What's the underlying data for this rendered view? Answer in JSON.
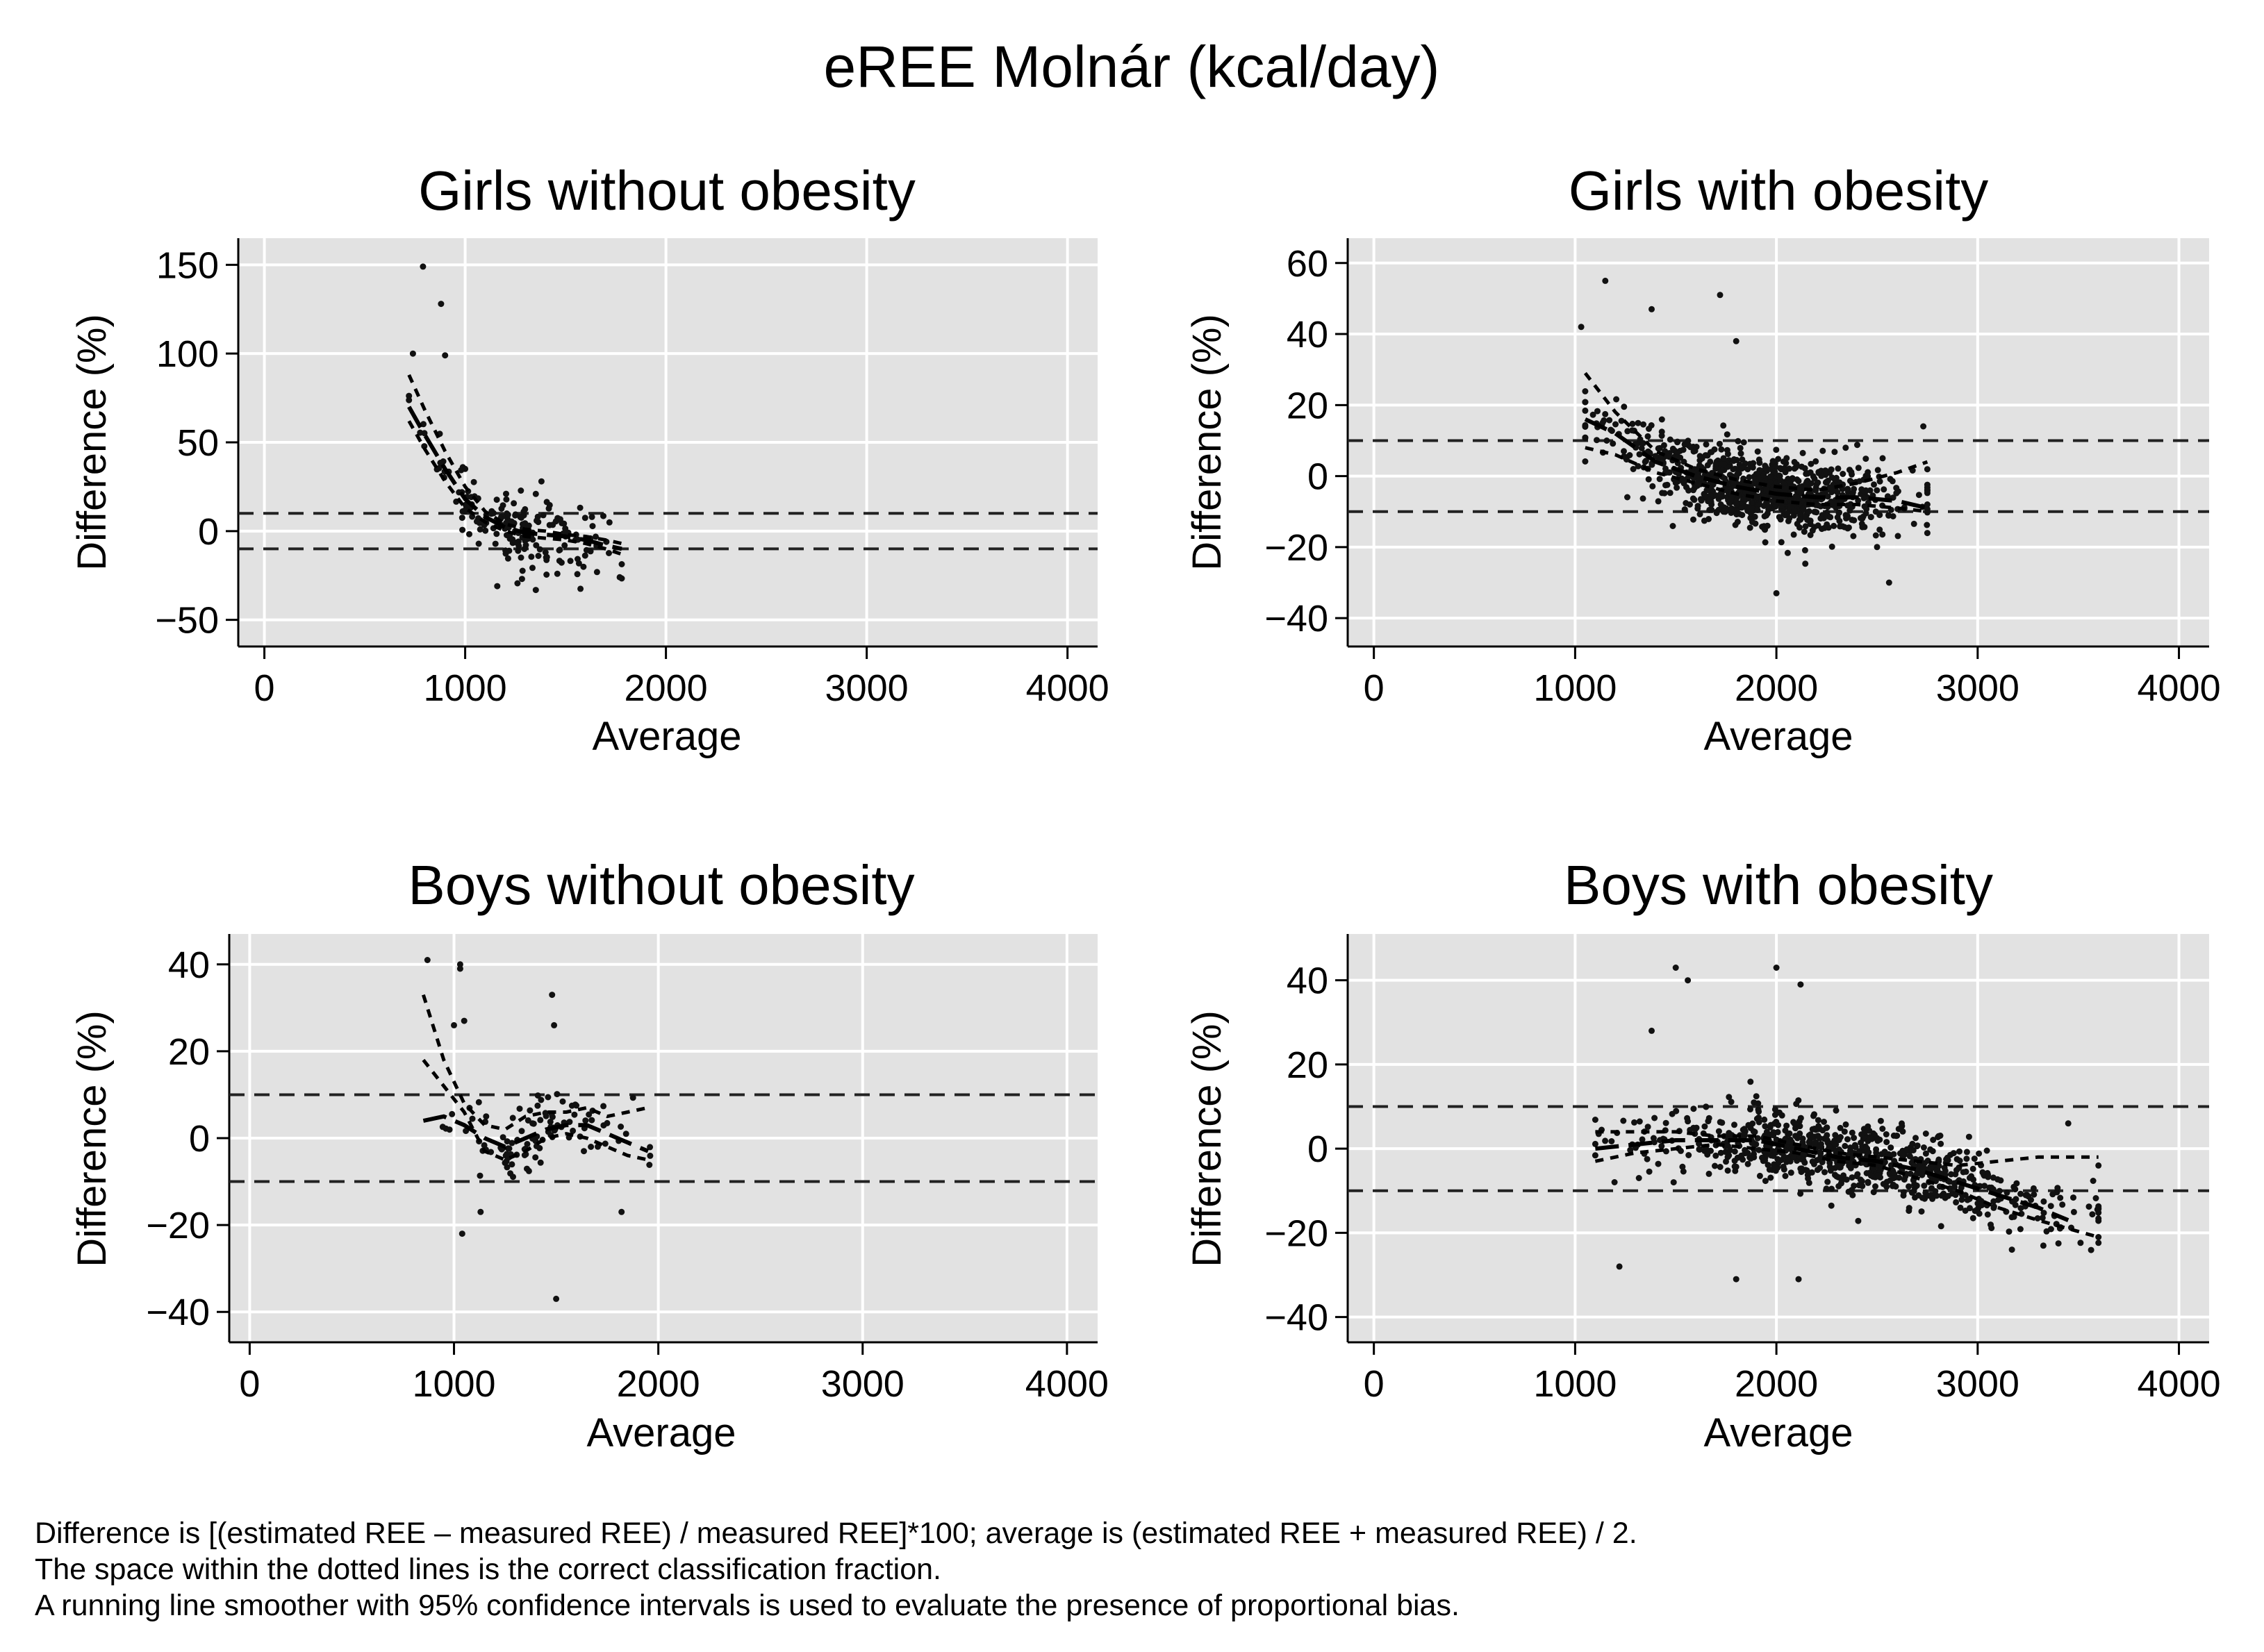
{
  "chart_data": {
    "type": "scatter",
    "title": "eREE Molnár (kcal/day)",
    "notes": [
      "Difference is [(estimated REE – measured REE) / measured REE]*100; average is (estimated REE + measured REE) / 2.",
      "The space within the dotted lines is the correct classification fraction.",
      "A running line smoother with 95% confidence intervals is used to evaluate the presence of proportional bias."
    ],
    "panels": [
      {
        "title": "Girls without obesity",
        "xlabel": "Average",
        "ylabel": "Difference (%)",
        "xlim": [
          -130,
          4150
        ],
        "ylim": [
          -65,
          165
        ],
        "xticks": [
          0,
          1000,
          2000,
          3000,
          4000
        ],
        "yticks": [
          150,
          100,
          50,
          0,
          -50
        ],
        "ytick_labels": [
          "150",
          "100",
          "50",
          "0",
          "−50"
        ],
        "reference_lines": [
          10,
          -10
        ],
        "scatter": {
          "x_range": [
            720,
            1780
          ],
          "points": 180,
          "outliers": [
            [
              790,
              149
            ],
            [
              880,
              128
            ],
            [
              900,
              99
            ],
            [
              740,
              100
            ],
            [
              1000,
              35
            ],
            [
              1500,
              -3
            ],
            [
              1770,
              -26
            ],
            [
              1160,
              -31
            ],
            [
              1380,
              28
            ]
          ]
        },
        "smoother": [
          [
            720,
            70
          ],
          [
            800,
            54
          ],
          [
            900,
            35
          ],
          [
            1000,
            18
          ],
          [
            1100,
            8
          ],
          [
            1200,
            2
          ],
          [
            1300,
            -1
          ],
          [
            1400,
            -2
          ],
          [
            1500,
            -3
          ],
          [
            1600,
            -5
          ],
          [
            1700,
            -8
          ],
          [
            1780,
            -10
          ]
        ],
        "ci_upper": [
          [
            720,
            88
          ],
          [
            800,
            68
          ],
          [
            900,
            45
          ],
          [
            1000,
            25
          ],
          [
            1100,
            11
          ],
          [
            1200,
            4
          ],
          [
            1300,
            1
          ],
          [
            1400,
            0
          ],
          [
            1500,
            -2
          ],
          [
            1600,
            -3
          ],
          [
            1700,
            -5
          ],
          [
            1780,
            -7
          ]
        ],
        "ci_lower": [
          [
            720,
            62
          ],
          [
            800,
            46
          ],
          [
            900,
            28
          ],
          [
            1000,
            13
          ],
          [
            1100,
            5
          ],
          [
            1200,
            0
          ],
          [
            1300,
            -3
          ],
          [
            1400,
            -4
          ],
          [
            1500,
            -5
          ],
          [
            1600,
            -7
          ],
          [
            1700,
            -10
          ],
          [
            1780,
            -13
          ]
        ]
      },
      {
        "title": "Girls with obesity",
        "xlabel": "Average",
        "ylabel": "Difference (%)",
        "xlim": [
          -130,
          4150
        ],
        "ylim": [
          -48,
          67
        ],
        "xticks": [
          0,
          1000,
          2000,
          3000,
          4000
        ],
        "yticks": [
          60,
          40,
          20,
          0,
          -20,
          -40
        ],
        "ytick_labels": [
          "60",
          "40",
          "20",
          "0",
          "−20",
          "−40"
        ],
        "reference_lines": [
          10,
          -10
        ],
        "scatter": {
          "x_range": [
            1050,
            2750
          ],
          "points": 900,
          "outliers": [
            [
              1150,
              55
            ],
            [
              1720,
              51
            ],
            [
              1030,
              42
            ],
            [
              1380,
              47
            ],
            [
              2730,
              14
            ],
            [
              2560,
              -30
            ],
            [
              2000,
              -33
            ],
            [
              1800,
              38
            ],
            [
              2500,
              -20
            ]
          ]
        },
        "smoother": [
          [
            1050,
            16
          ],
          [
            1200,
            12
          ],
          [
            1400,
            4
          ],
          [
            1600,
            0
          ],
          [
            1800,
            -3
          ],
          [
            2000,
            -5
          ],
          [
            2200,
            -6
          ],
          [
            2400,
            -6
          ],
          [
            2600,
            -7
          ],
          [
            2750,
            -9
          ]
        ],
        "ci_upper": [
          [
            1050,
            29
          ],
          [
            1200,
            18
          ],
          [
            1400,
            7
          ],
          [
            1600,
            2
          ],
          [
            1800,
            -1
          ],
          [
            2000,
            -3
          ],
          [
            2200,
            -4
          ],
          [
            2400,
            -2
          ],
          [
            2600,
            1
          ],
          [
            2750,
            4
          ]
        ],
        "ci_lower": [
          [
            1050,
            8
          ],
          [
            1200,
            6
          ],
          [
            1400,
            1
          ],
          [
            1600,
            -2
          ],
          [
            1800,
            -5
          ],
          [
            2000,
            -7
          ],
          [
            2200,
            -8
          ],
          [
            2400,
            -8
          ],
          [
            2600,
            -9
          ],
          [
            2750,
            -10
          ]
        ]
      },
      {
        "title": "Boys without obesity",
        "xlabel": "Average",
        "ylabel": "Difference (%)",
        "xlim": [
          -100,
          4150
        ],
        "ylim": [
          -47,
          47
        ],
        "xticks": [
          0,
          1000,
          2000,
          3000,
          4000
        ],
        "yticks": [
          40,
          20,
          0,
          -20,
          -40
        ],
        "ytick_labels": [
          "40",
          "20",
          "0",
          "−20",
          "−40"
        ],
        "reference_lines": [
          10,
          -10
        ],
        "scatter": {
          "x_range": [
            850,
            2000
          ],
          "points": 110,
          "outliers": [
            [
              870,
              41
            ],
            [
              1030,
              40
            ],
            [
              1030,
              39
            ],
            [
              1480,
              33
            ],
            [
              1490,
              26
            ],
            [
              1000,
              26
            ],
            [
              1050,
              27
            ],
            [
              1500,
              -37
            ],
            [
              1040,
              -22
            ],
            [
              1820,
              -17
            ],
            [
              1130,
              -17
            ]
          ]
        },
        "smoother": [
          [
            850,
            4
          ],
          [
            950,
            5
          ],
          [
            1050,
            3
          ],
          [
            1150,
            0
          ],
          [
            1250,
            -2
          ],
          [
            1350,
            0
          ],
          [
            1450,
            2
          ],
          [
            1550,
            3
          ],
          [
            1650,
            3
          ],
          [
            1750,
            1
          ],
          [
            1850,
            -1
          ],
          [
            1950,
            -3
          ]
        ],
        "ci_upper": [
          [
            850,
            33
          ],
          [
            950,
            18
          ],
          [
            1050,
            8
          ],
          [
            1150,
            3
          ],
          [
            1250,
            2
          ],
          [
            1350,
            5
          ],
          [
            1450,
            6
          ],
          [
            1550,
            6
          ],
          [
            1650,
            7
          ],
          [
            1750,
            5
          ],
          [
            1850,
            6
          ],
          [
            1950,
            7
          ]
        ],
        "ci_lower": [
          [
            850,
            18
          ],
          [
            950,
            12
          ],
          [
            1050,
            6
          ],
          [
            1150,
            -3
          ],
          [
            1250,
            -5
          ],
          [
            1350,
            -3
          ],
          [
            1450,
            0
          ],
          [
            1550,
            1
          ],
          [
            1650,
            0
          ],
          [
            1750,
            -2
          ],
          [
            1850,
            -4
          ],
          [
            1950,
            -5
          ]
        ]
      },
      {
        "title": "Boys with obesity",
        "xlabel": "Average",
        "ylabel": "Difference (%)",
        "xlim": [
          -130,
          4150
        ],
        "ylim": [
          -46,
          51
        ],
        "xticks": [
          0,
          1000,
          2000,
          3000,
          4000
        ],
        "yticks": [
          40,
          20,
          0,
          -20,
          -40
        ],
        "ytick_labels": [
          "40",
          "20",
          "0",
          "−20",
          "−40"
        ],
        "reference_lines": [
          10,
          -10
        ],
        "scatter": {
          "x_range": [
            1100,
            3600
          ],
          "points": 800,
          "outliers": [
            [
              1500,
              43
            ],
            [
              1560,
              40
            ],
            [
              2000,
              43
            ],
            [
              2120,
              39
            ],
            [
              1380,
              28
            ],
            [
              1220,
              -28
            ],
            [
              1800,
              -31
            ],
            [
              2110,
              -31
            ],
            [
              3170,
              -24
            ],
            [
              3450,
              6
            ],
            [
              3600,
              -21
            ],
            [
              3600,
              -4
            ]
          ]
        },
        "smoother": [
          [
            1100,
            0
          ],
          [
            1300,
            1
          ],
          [
            1500,
            2
          ],
          [
            1700,
            2
          ],
          [
            1900,
            2
          ],
          [
            2100,
            0
          ],
          [
            2300,
            -2
          ],
          [
            2500,
            -3
          ],
          [
            2700,
            -5
          ],
          [
            2900,
            -8
          ],
          [
            3100,
            -11
          ],
          [
            3300,
            -14
          ],
          [
            3450,
            -17
          ]
        ],
        "ci_upper": [
          [
            1100,
            4
          ],
          [
            1300,
            4
          ],
          [
            1500,
            4
          ],
          [
            1700,
            3
          ],
          [
            1900,
            3
          ],
          [
            2100,
            1
          ],
          [
            2300,
            -1
          ],
          [
            2500,
            -2
          ],
          [
            2700,
            -3
          ],
          [
            2900,
            -4
          ],
          [
            3100,
            -3
          ],
          [
            3300,
            -2
          ],
          [
            3600,
            -2
          ]
        ],
        "ci_lower": [
          [
            1100,
            -3
          ],
          [
            1300,
            -1
          ],
          [
            1500,
            0
          ],
          [
            1700,
            1
          ],
          [
            1900,
            0
          ],
          [
            2100,
            -1
          ],
          [
            2300,
            -3
          ],
          [
            2500,
            -4
          ],
          [
            2700,
            -7
          ],
          [
            2900,
            -10
          ],
          [
            3100,
            -14
          ],
          [
            3300,
            -17
          ],
          [
            3600,
            -21
          ]
        ]
      }
    ]
  }
}
